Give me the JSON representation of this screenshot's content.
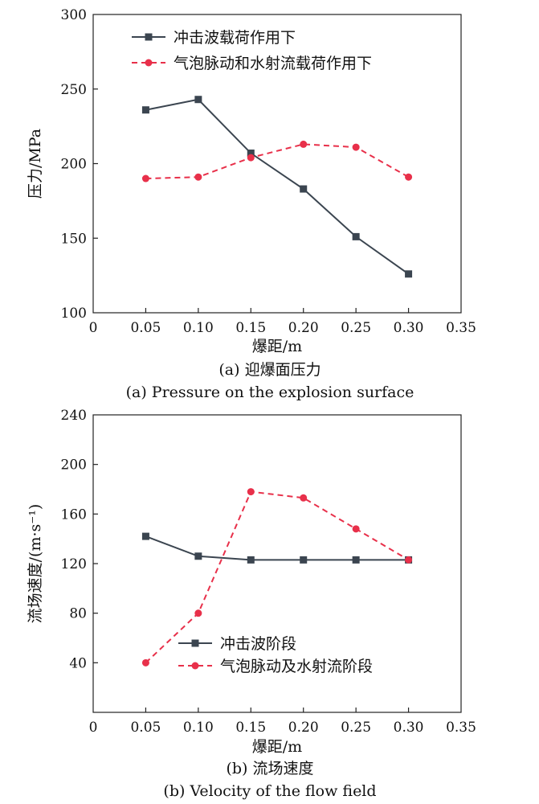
{
  "chart_data": [
    {
      "type": "line",
      "caption_cn": "(a) 迎爆面压力",
      "caption_en": "(a) Pressure on the explosion surface",
      "xlabel": "爆距/m",
      "ylabel": "压力/MPa",
      "xlim": [
        0,
        0.35
      ],
      "ylim": [
        100,
        300
      ],
      "xticks": [
        "0",
        "0.05",
        "0.10",
        "0.15",
        "0.20",
        "0.25",
        "0.30",
        "0.35"
      ],
      "yticks": [
        "100",
        "150",
        "200",
        "250",
        "300"
      ],
      "x": [
        0.05,
        0.1,
        0.15,
        0.2,
        0.25,
        0.3
      ],
      "legend_position": "top-center",
      "grid": false,
      "series": [
        {
          "name": "冲击波载荷作用下",
          "values": [
            236,
            243,
            207,
            183,
            151,
            126
          ],
          "color": "#3b4550",
          "marker": "square",
          "dash": "solid"
        },
        {
          "name": "气泡脉动和水射流载荷作用下",
          "values": [
            190,
            191,
            204,
            213,
            211,
            191
          ],
          "color": "#e8304a",
          "marker": "circle",
          "dash": "dashed"
        }
      ]
    },
    {
      "type": "line",
      "caption_cn": "(b) 流场速度",
      "caption_en": "(b) Velocity of the flow field",
      "xlabel": "爆距/m",
      "ylabel": "流场速度/(m·s⁻¹)",
      "xlim": [
        0,
        0.35
      ],
      "ylim": [
        0,
        240
      ],
      "xticks": [
        "0",
        "0.05",
        "0.10",
        "0.15",
        "0.20",
        "0.25",
        "0.30",
        "0.35"
      ],
      "yticks": [
        "40",
        "80",
        "120",
        "160",
        "200",
        "240"
      ],
      "x": [
        0.05,
        0.1,
        0.15,
        0.2,
        0.25,
        0.3
      ],
      "legend_position": "bottom-center",
      "grid": false,
      "series": [
        {
          "name": "冲击波阶段",
          "values": [
            142,
            126,
            123,
            123,
            123,
            123
          ],
          "color": "#3b4550",
          "marker": "square",
          "dash": "solid"
        },
        {
          "name": "气泡脉动及水射流阶段",
          "values": [
            40,
            80,
            178,
            173,
            148,
            123
          ],
          "color": "#e8304a",
          "marker": "circle",
          "dash": "dashed"
        }
      ]
    }
  ]
}
